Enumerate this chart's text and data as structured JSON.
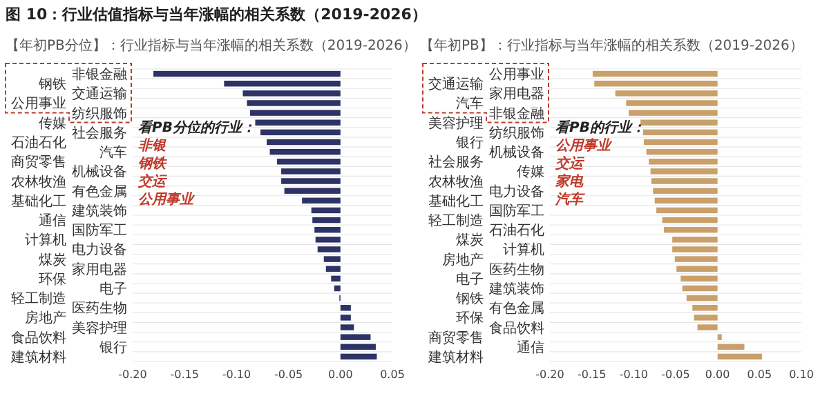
{
  "chart_data": [
    {
      "type": "bar",
      "orientation": "horizontal",
      "title": "图 10：行业估值指标与当年涨幅的相关系数（2019-2026）",
      "subtitle": "【年初PB分位】：行业指标与当年涨幅的相关系数（2019-2026）",
      "categories": [
        "非银金融",
        "钢铁",
        "交通运输",
        "公用事业",
        "纺织服饰",
        "传媒",
        "社会服务",
        "石油石化",
        "汽车",
        "商贸零售",
        "机械设备",
        "农林牧渔",
        "有色金属",
        "基础化工",
        "建筑装饰",
        "通信",
        "国防军工",
        "计算机",
        "电力设备",
        "煤炭",
        "家用电器",
        "环保",
        "电子",
        "轻工制造",
        "医药生物",
        "房地产",
        "美容护理",
        "食品饮料",
        "银行",
        "建筑材料"
      ],
      "values": [
        -0.18,
        -0.112,
        -0.094,
        -0.09,
        -0.087,
        -0.082,
        -0.077,
        -0.071,
        -0.068,
        -0.061,
        -0.057,
        -0.057,
        -0.054,
        -0.037,
        -0.028,
        -0.027,
        -0.025,
        -0.024,
        -0.022,
        -0.016,
        -0.014,
        -0.009,
        -0.006,
        -0.001,
        0.01,
        0.01,
        0.013,
        0.029,
        0.034,
        0.035
      ],
      "color": "#2e3366",
      "xlim": [
        -0.2,
        0.05
      ],
      "xticks": [
        {
          "value": -0.2,
          "label": "-0.20"
        },
        {
          "value": -0.15,
          "label": "-0.15"
        },
        {
          "value": -0.1,
          "label": "-0.10"
        },
        {
          "value": -0.05,
          "label": "-0.05"
        },
        {
          "value": 0,
          "label": "0.00"
        },
        {
          "value": 0.05,
          "label": "0.05"
        }
      ],
      "grid": "y",
      "annotations": [
        "看PB分位的行业：",
        "非银",
        "钢铁",
        "交运",
        "公用事业"
      ]
    },
    {
      "type": "bar",
      "orientation": "horizontal",
      "subtitle": "【年初PB】：行业指标与当年涨幅的相关系数（2019-2026）",
      "categories": [
        "公用事业",
        "交通运输",
        "家用电器",
        "汽车",
        "非银金融",
        "美容护理",
        "纺织服饰",
        "银行",
        "机械设备",
        "社会服务",
        "传媒",
        "农林牧渔",
        "电力设备",
        "基础化工",
        "国防军工",
        "轻工制造",
        "石油石化",
        "煤炭",
        "计算机",
        "房地产",
        "医药生物",
        "电子",
        "建筑装饰",
        "钢铁",
        "有色金属",
        "环保",
        "食品饮料",
        "商贸零售",
        "通信",
        "建筑材料"
      ],
      "values": [
        -0.149,
        -0.147,
        -0.122,
        -0.109,
        -0.106,
        -0.092,
        -0.089,
        -0.088,
        -0.085,
        -0.082,
        -0.08,
        -0.079,
        -0.077,
        -0.075,
        -0.073,
        -0.066,
        -0.064,
        -0.054,
        -0.054,
        -0.051,
        -0.049,
        -0.044,
        -0.042,
        -0.037,
        -0.03,
        -0.028,
        -0.024,
        0.005,
        0.032,
        0.053
      ],
      "color": "#c9a06a",
      "xlim": [
        -0.2,
        0.1
      ],
      "xticks": [
        {
          "value": -0.2,
          "label": "-0.20"
        },
        {
          "value": -0.15,
          "label": "-0.15"
        },
        {
          "value": -0.1,
          "label": "-0.10"
        },
        {
          "value": -0.05,
          "label": "-0.05"
        },
        {
          "value": 0,
          "label": "0.00"
        },
        {
          "value": 0.05,
          "label": "0.05"
        },
        {
          "value": 0.1,
          "label": "0.10"
        }
      ],
      "grid": "y",
      "annotations": [
        "看PB的行业：",
        "公用事业",
        "交运",
        "家电",
        "汽车"
      ]
    }
  ]
}
